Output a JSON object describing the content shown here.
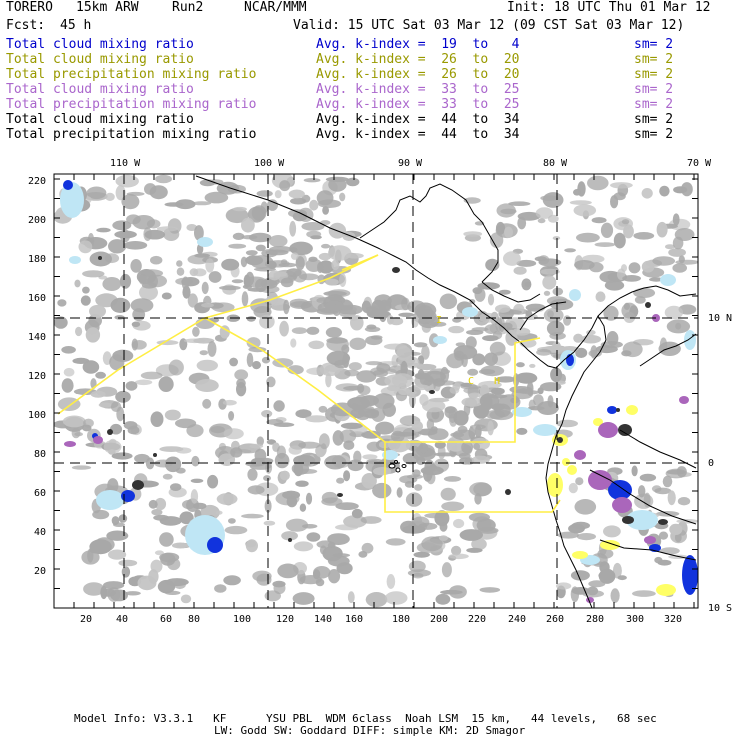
{
  "header": {
    "model_name": "TORERO",
    "resolution": "15km ARW",
    "run": "Run2",
    "institution": "NCAR/MMM",
    "init": "Init: 18 UTC Thu 01 Mar 12",
    "fcst_label": "Fcst:",
    "fcst_hours": "45 h",
    "valid": "Valid: 15 UTC Sat 03 Mar 12 (09 CST Sat 03 Mar 12)"
  },
  "legend": [
    {
      "field": "Total cloud mixing ratio",
      "kindex": "Avg. k-index =  19  to   4",
      "sm": "sm= 2",
      "color": "#0000cc"
    },
    {
      "field": "Total cloud mixing ratio",
      "kindex": "Avg. k-index =  26  to  20",
      "sm": "sm= 2",
      "color": "#999900"
    },
    {
      "field": "Total precipitation mixing ratio",
      "kindex": "Avg. k-index =  26  to  20",
      "sm": "sm= 2",
      "color": "#999900"
    },
    {
      "field": "Total cloud mixing ratio",
      "kindex": "Avg. k-index =  33  to  25",
      "sm": "sm= 2",
      "color": "#aa66cc"
    },
    {
      "field": "Total precipitation mixing ratio",
      "kindex": "Avg. k-index =  33  to  25",
      "sm": "sm= 2",
      "color": "#aa66cc"
    },
    {
      "field": "Total cloud mixing ratio",
      "kindex": "Avg. k-index =  44  to  34",
      "sm": "sm= 2",
      "color": "#000000"
    },
    {
      "field": "Total precipitation mixing ratio",
      "kindex": "Avg. k-index =  44  to  34",
      "sm": "sm= 2",
      "color": "#000000"
    }
  ],
  "map": {
    "lon_labels": [
      "110 W",
      "100 W",
      "90 W",
      "80 W",
      "70 W"
    ],
    "lat_labels": [
      "10 N",
      "0",
      "10 S"
    ],
    "x_ticks": [
      "20",
      "40",
      "60",
      "80",
      "100",
      "120",
      "140",
      "160",
      "180",
      "200",
      "220",
      "240",
      "260",
      "280",
      "300",
      "320"
    ],
    "y_ticks": [
      "220",
      "200",
      "180",
      "160",
      "140",
      "120",
      "100",
      "80",
      "60",
      "40",
      "20"
    ],
    "colors": {
      "cloud_gray": "#a8a8a8",
      "cloud_dark": "#333333",
      "light_blue": "#bfe6f5",
      "blue": "#1133dd",
      "yellow": "#ffff66",
      "purple": "#aa66bb",
      "yellow_line": "#ffee44",
      "coast": "#000000"
    },
    "annotations": [
      "I",
      "C",
      "H"
    ]
  },
  "footer": {
    "line1": "Model Info: V3.3.1   KF      YSU PBL  WDM 6class  Noah LSM  15 km,   44 levels,   68 sec",
    "line2": "LW: Godd SW: Goddard DIFF: simple KM: 2D Smagor"
  }
}
